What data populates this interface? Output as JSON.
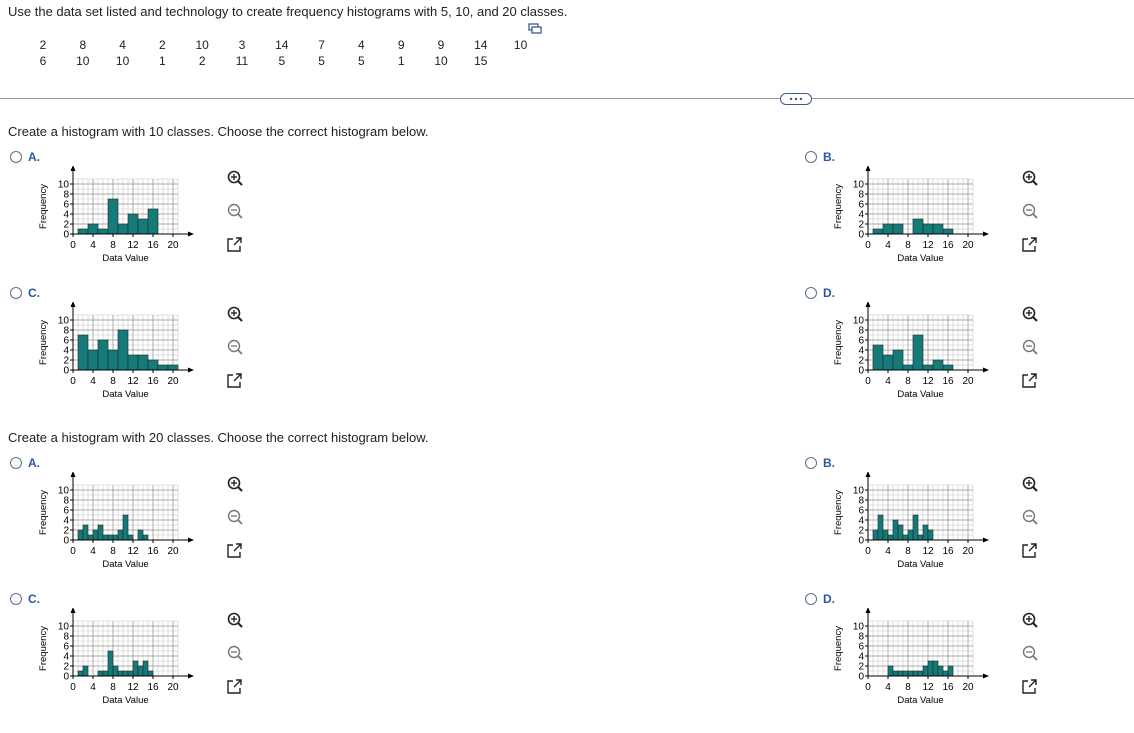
{
  "question": "Use the data set listed and technology to create frequency histograms with 5, 10, and 20 classes.",
  "data_rows": [
    [
      2,
      8,
      4,
      2,
      10,
      3,
      14,
      7,
      4,
      9,
      9,
      14,
      10
    ],
    [
      6,
      10,
      10,
      1,
      2,
      11,
      5,
      5,
      5,
      1,
      10,
      15
    ]
  ],
  "parts": [
    {
      "prompt": "Create a histogram with 10 classes. Choose the correct histogram below.",
      "options": [
        {
          "letter": "A.",
          "chart_data": {
            "type": "histogram",
            "bins": [
              1,
              3,
              5,
              7,
              9,
              11,
              13,
              15,
              17,
              19,
              21
            ],
            "values": [
              1,
              2,
              1,
              7,
              2,
              4,
              3,
              5,
              0,
              0
            ],
            "color": "#167a78",
            "xlabel": "Data Value",
            "ylabel": "Frequency",
            "xlim": [
              0,
              21
            ],
            "ylim": [
              0,
              11
            ],
            "xticks": [
              0,
              4,
              8,
              12,
              16,
              20
            ],
            "yticks": [
              0,
              2,
              4,
              6,
              8,
              10
            ],
            "grid": true
          }
        },
        {
          "letter": "B.",
          "chart_data": {
            "type": "histogram",
            "bins": [
              1,
              3,
              5,
              7,
              9,
              11,
              13,
              15,
              17,
              19,
              21
            ],
            "values": [
              1,
              2,
              2,
              0,
              3,
              2,
              2,
              1,
              0,
              0
            ],
            "color": "#167a78",
            "xlabel": "Data Value",
            "ylabel": "Frequency",
            "xlim": [
              0,
              21
            ],
            "ylim": [
              0,
              11
            ],
            "xticks": [
              0,
              4,
              8,
              12,
              16,
              20
            ],
            "yticks": [
              0,
              2,
              4,
              6,
              8,
              10
            ],
            "grid": true
          }
        },
        {
          "letter": "C.",
          "chart_data": {
            "type": "histogram",
            "bins": [
              1,
              3,
              5,
              7,
              9,
              11,
              13,
              15,
              17,
              19,
              21
            ],
            "values": [
              7,
              4,
              6,
              4,
              8,
              3,
              3,
              2,
              1,
              1
            ],
            "color": "#167a78",
            "xlabel": "Data Value",
            "ylabel": "Frequency",
            "xlim": [
              0,
              21
            ],
            "ylim": [
              0,
              11
            ],
            "xticks": [
              0,
              4,
              8,
              12,
              16,
              20
            ],
            "yticks": [
              0,
              2,
              4,
              6,
              8,
              10
            ],
            "grid": true
          }
        },
        {
          "letter": "D.",
          "chart_data": {
            "type": "histogram",
            "bins": [
              1,
              3,
              5,
              7,
              9,
              11,
              13,
              15,
              17,
              19,
              21
            ],
            "values": [
              5,
              3,
              4,
              1,
              7,
              1,
              2,
              1,
              0,
              0
            ],
            "color": "#167a78",
            "xlabel": "Data Value",
            "ylabel": "Frequency",
            "xlim": [
              0,
              21
            ],
            "ylim": [
              0,
              11
            ],
            "xticks": [
              0,
              4,
              8,
              12,
              16,
              20
            ],
            "yticks": [
              0,
              2,
              4,
              6,
              8,
              10
            ],
            "grid": true
          }
        }
      ]
    },
    {
      "prompt": "Create a histogram with 20 classes. Choose the correct histogram below.",
      "options": [
        {
          "letter": "A.",
          "chart_data": {
            "type": "histogram",
            "bins": [
              1,
              2,
              3,
              4,
              5,
              6,
              7,
              8,
              9,
              10,
              11,
              12,
              13,
              14,
              15,
              16,
              17,
              18,
              19,
              20,
              21
            ],
            "values": [
              2,
              3,
              1,
              2,
              3,
              1,
              1,
              1,
              2,
              5,
              1,
              0,
              2,
              1,
              0,
              0,
              0,
              0,
              0,
              0
            ],
            "color": "#167a78",
            "xlabel": "Data Value",
            "ylabel": "Frequency",
            "xlim": [
              0,
              21
            ],
            "ylim": [
              0,
              11
            ],
            "xticks": [
              0,
              4,
              8,
              12,
              16,
              20
            ],
            "yticks": [
              0,
              2,
              4,
              6,
              8,
              10
            ],
            "grid": true
          }
        },
        {
          "letter": "B.",
          "chart_data": {
            "type": "histogram",
            "bins": [
              1,
              2,
              3,
              4,
              5,
              6,
              7,
              8,
              9,
              10,
              11,
              12,
              13,
              14,
              15,
              16,
              17,
              18,
              19,
              20,
              21
            ],
            "values": [
              2,
              5,
              2,
              1,
              4,
              3,
              1,
              2,
              5,
              1,
              3,
              2,
              0,
              0,
              0,
              0,
              0,
              0,
              0,
              0
            ],
            "color": "#167a78",
            "xlabel": "Data Value",
            "ylabel": "Frequency",
            "xlim": [
              0,
              21
            ],
            "ylim": [
              0,
              11
            ],
            "xticks": [
              0,
              4,
              8,
              12,
              16,
              20
            ],
            "yticks": [
              0,
              2,
              4,
              6,
              8,
              10
            ],
            "grid": true
          }
        },
        {
          "letter": "C.",
          "chart_data": {
            "type": "histogram",
            "bins": [
              1,
              2,
              3,
              4,
              5,
              6,
              7,
              8,
              9,
              10,
              11,
              12,
              13,
              14,
              15,
              16,
              17,
              18,
              19,
              20,
              21
            ],
            "values": [
              1,
              2,
              0,
              0,
              1,
              1,
              5,
              2,
              1,
              1,
              1,
              3,
              2,
              3,
              1,
              0,
              0,
              0,
              0,
              0
            ],
            "color": "#167a78",
            "xlabel": "Data Value",
            "ylabel": "Frequency",
            "xlim": [
              0,
              21
            ],
            "ylim": [
              0,
              11
            ],
            "xticks": [
              0,
              4,
              8,
              12,
              16,
              20
            ],
            "yticks": [
              0,
              2,
              4,
              6,
              8,
              10
            ],
            "grid": true
          }
        },
        {
          "letter": "D.",
          "chart_data": {
            "type": "histogram",
            "bins": [
              1,
              2,
              3,
              4,
              5,
              6,
              7,
              8,
              9,
              10,
              11,
              12,
              13,
              14,
              15,
              16,
              17,
              18,
              19,
              20,
              21
            ],
            "values": [
              0,
              0,
              0,
              2,
              1,
              1,
              1,
              1,
              1,
              1,
              2,
              3,
              3,
              2,
              1,
              2,
              0,
              0,
              0,
              0
            ],
            "color": "#167a78",
            "xlabel": "Data Value",
            "ylabel": "Frequency",
            "xlim": [
              0,
              21
            ],
            "ylim": [
              0,
              11
            ],
            "xticks": [
              0,
              4,
              8,
              12,
              16,
              20
            ],
            "yticks": [
              0,
              2,
              4,
              6,
              8,
              10
            ],
            "grid": true
          }
        }
      ]
    }
  ]
}
